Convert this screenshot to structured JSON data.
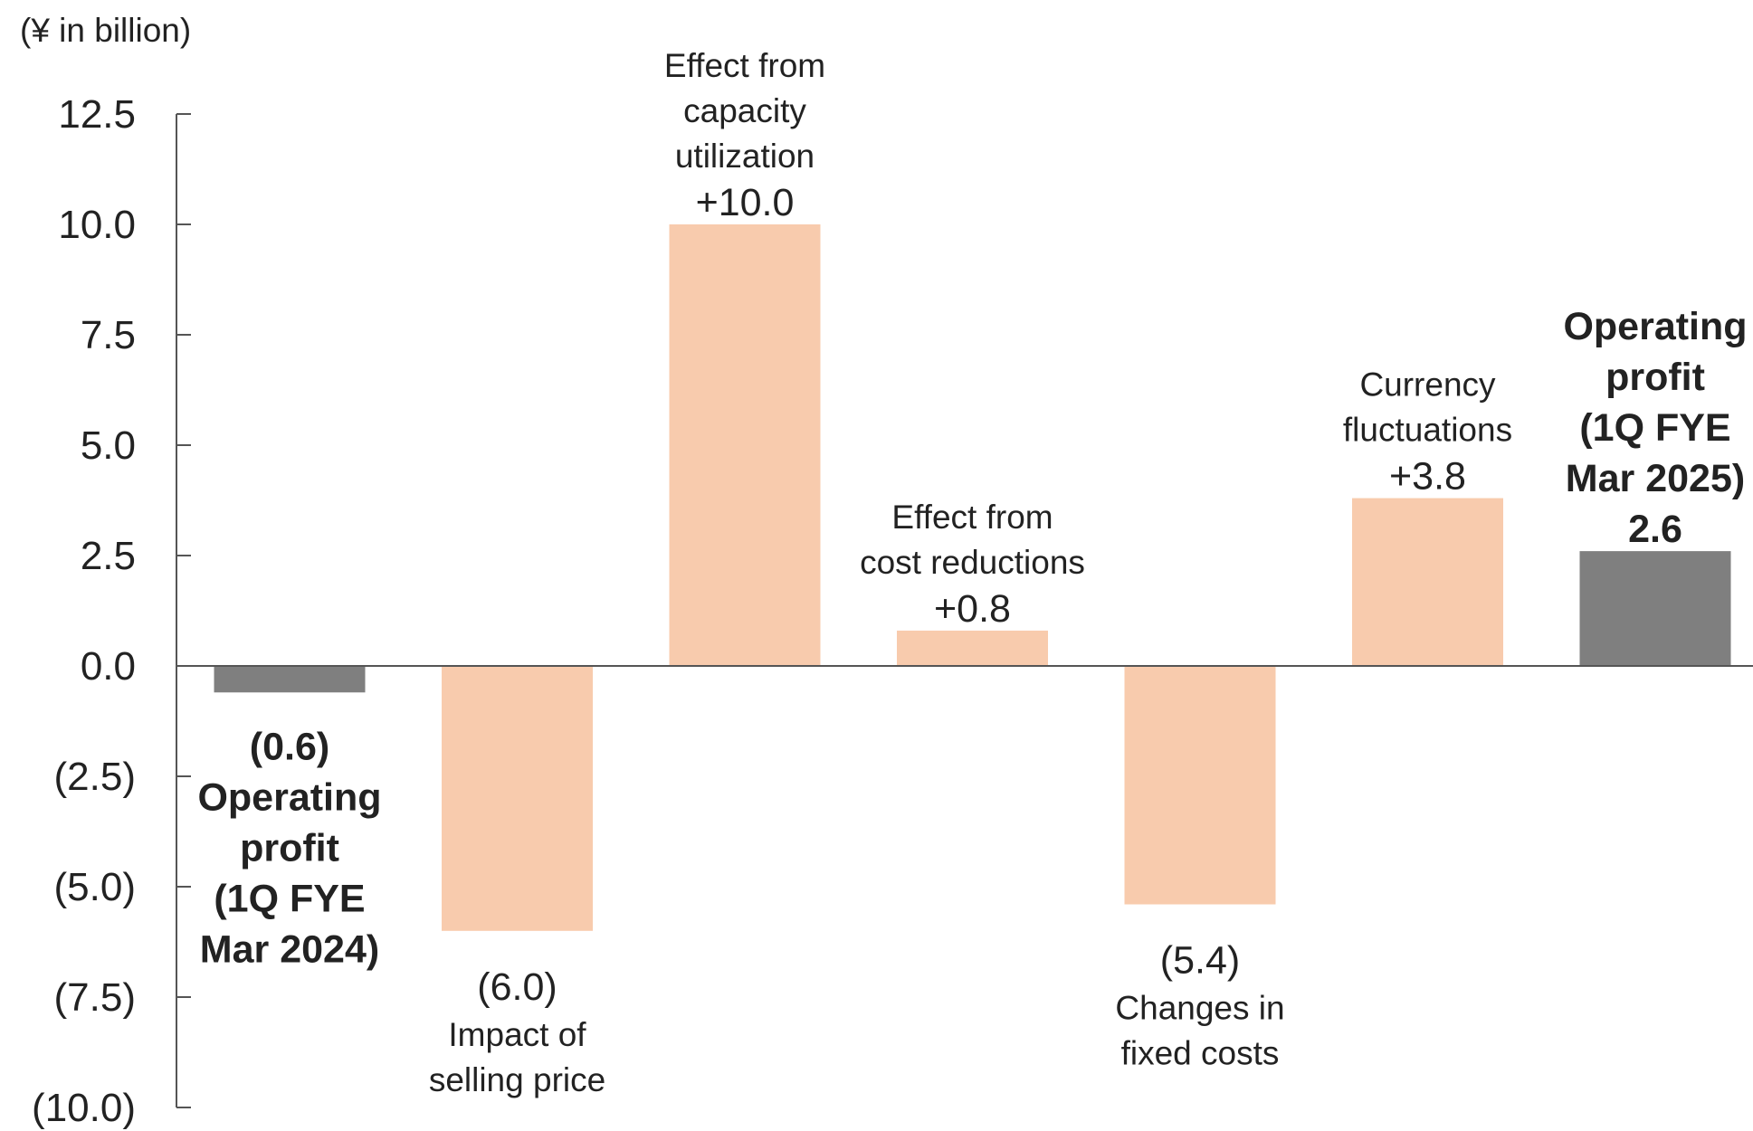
{
  "chart_data": {
    "type": "bar",
    "unit_label": "(¥ in billion)",
    "ylim": [
      -10.0,
      12.5
    ],
    "yticks": [
      "(10.0)",
      "(7.5)",
      "(5.0)",
      "(2.5)",
      "0.0",
      "2.5",
      "5.0",
      "7.5",
      "10.0",
      "12.5"
    ],
    "ytick_values": [
      -10.0,
      -7.5,
      -5.0,
      -2.5,
      0.0,
      2.5,
      5.0,
      7.5,
      10.0,
      12.5
    ],
    "grid": false,
    "bars": [
      {
        "value": -0.6,
        "value_label": "(0.6)",
        "label_lines": [
          "Operating",
          "profit",
          "(1Q FYE",
          "Mar 2024)"
        ],
        "kind": "total",
        "color": "#7f7f7f"
      },
      {
        "value": -6.0,
        "value_label": "(6.0)",
        "label_lines": [
          "Impact of",
          "selling price"
        ],
        "kind": "change",
        "color": "#f8cbad"
      },
      {
        "value": 10.0,
        "value_label": "+10.0",
        "label_lines": [
          "Effect from",
          "capacity",
          "utilization"
        ],
        "kind": "change",
        "color": "#f8cbad"
      },
      {
        "value": 0.8,
        "value_label": "+0.8",
        "label_lines": [
          "Effect from",
          "cost reductions"
        ],
        "kind": "change",
        "color": "#f8cbad"
      },
      {
        "value": -5.4,
        "value_label": "(5.4)",
        "label_lines": [
          "Changes in",
          "fixed costs"
        ],
        "kind": "change",
        "color": "#f8cbad"
      },
      {
        "value": 3.8,
        "value_label": "+3.8",
        "label_lines": [
          "Currency",
          "fluctuations"
        ],
        "kind": "change",
        "color": "#f8cbad"
      },
      {
        "value": 2.6,
        "value_label": "2.6",
        "label_lines": [
          "Operating",
          "profit",
          "(1Q FYE",
          "Mar 2025)"
        ],
        "kind": "total",
        "color": "#7f7f7f"
      }
    ]
  }
}
